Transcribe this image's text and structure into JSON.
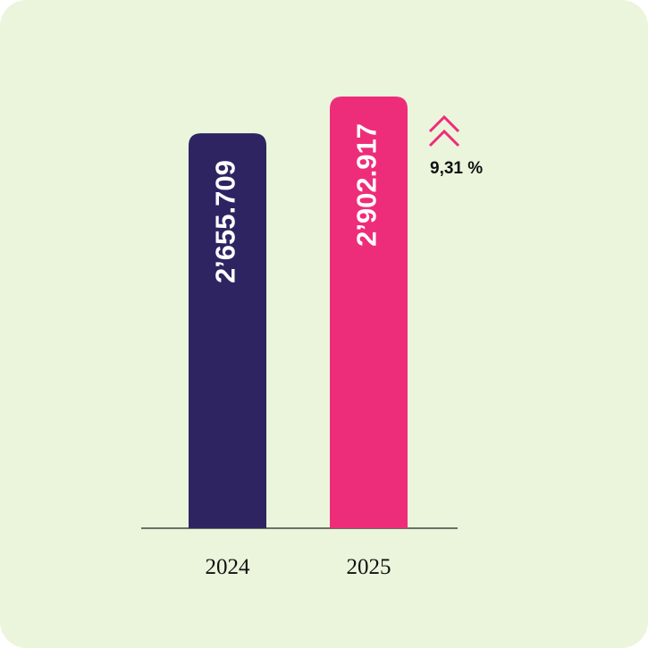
{
  "chart_data": {
    "type": "bar",
    "categories": [
      "2024",
      "2025"
    ],
    "series": [
      {
        "values": [
          2655709,
          2902917
        ],
        "value_labels": [
          "2’655.709",
          "2’902.917"
        ],
        "colors": [
          "#2e2462",
          "#ee2d7a"
        ]
      }
    ],
    "annotation": "9,31 %"
  }
}
